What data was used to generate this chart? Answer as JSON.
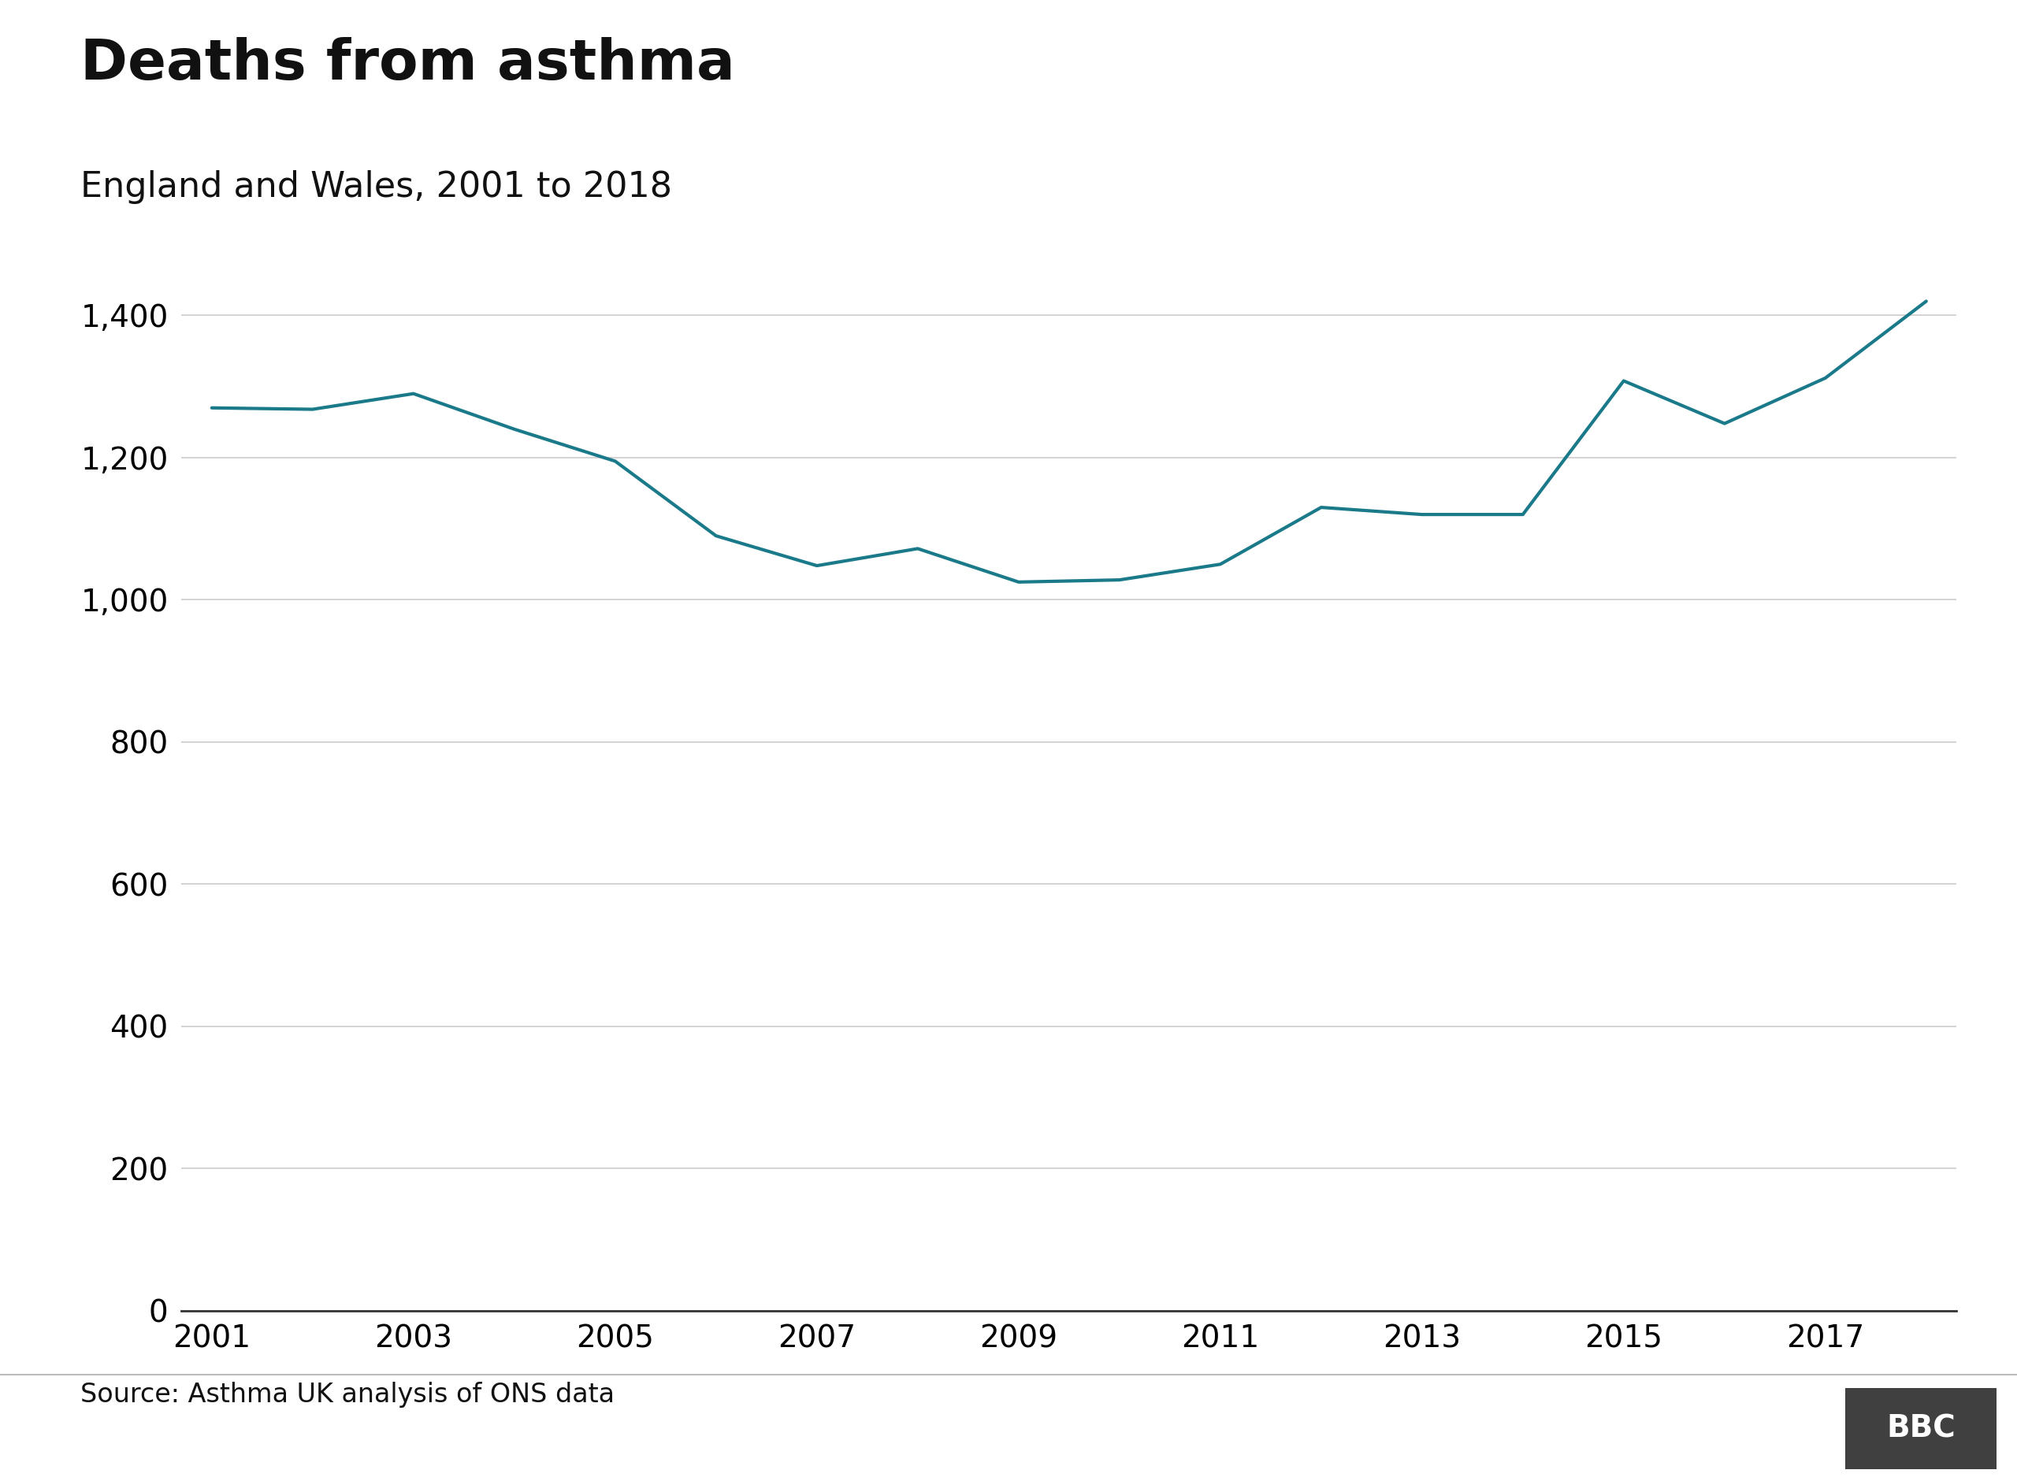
{
  "title": "Deaths from asthma",
  "subtitle": "England and Wales, 2001 to 2018",
  "source": "Source: Asthma UK analysis of ONS data",
  "years": [
    2001,
    2002,
    2003,
    2004,
    2005,
    2006,
    2007,
    2008,
    2009,
    2010,
    2011,
    2012,
    2013,
    2014,
    2015,
    2016,
    2017,
    2018
  ],
  "values": [
    1270,
    1268,
    1290,
    1240,
    1195,
    1090,
    1048,
    1072,
    1025,
    1028,
    1050,
    1130,
    1120,
    1120,
    1308,
    1248,
    1312,
    1420
  ],
  "line_color": "#1a7a8a",
  "line_width": 3.0,
  "background_color": "#ffffff",
  "grid_color": "#cccccc",
  "title_fontsize": 52,
  "subtitle_fontsize": 32,
  "tick_fontsize": 28,
  "source_fontsize": 24,
  "bbc_fontsize": 28,
  "ylim": [
    0,
    1500
  ],
  "yticks": [
    0,
    200,
    400,
    600,
    800,
    1000,
    1200,
    1400
  ],
  "xticks": [
    2001,
    2003,
    2005,
    2007,
    2009,
    2011,
    2013,
    2015,
    2017
  ],
  "footer_color": "#cccccc",
  "bbc_bg": "#404040"
}
